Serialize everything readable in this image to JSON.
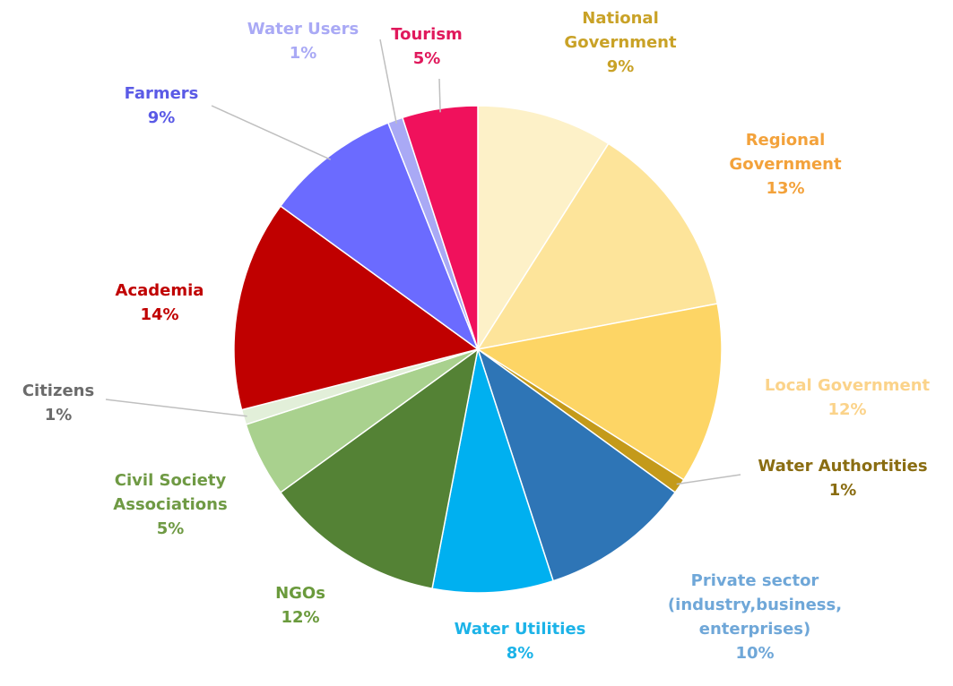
{
  "chart_data": {
    "type": "pie",
    "title": "",
    "start_category": "National Government",
    "direction": "clockwise",
    "slices": [
      {
        "name": "National Government",
        "name_lines": [
          "National",
          "Government"
        ],
        "value": 9,
        "value_label": "9%",
        "color": "#fdf1c8",
        "label_color": "#c9a227"
      },
      {
        "name": "Regional Government",
        "name_lines": [
          "Regional",
          "Government"
        ],
        "value": 13,
        "value_label": "13%",
        "color": "#fde49a",
        "label_color": "#f3a23b"
      },
      {
        "name": "Local Government",
        "name_lines": [
          "Local Government"
        ],
        "value": 12,
        "value_label": "12%",
        "color": "#fdd565",
        "label_color": "#fbd38a"
      },
      {
        "name": "Water Authortities",
        "name_lines": [
          "Water Authortities"
        ],
        "value": 1,
        "value_label": "1%",
        "color": "#c49a1a",
        "label_color": "#8a6d12"
      },
      {
        "name": "Private sector (industry,business, enterprises)",
        "name_lines": [
          "Private sector",
          "(industry,business,",
          "enterprises)"
        ],
        "value": 10,
        "value_label": "10%",
        "color": "#2e75b6",
        "label_color": "#6fa7d8"
      },
      {
        "name": "Water Utilities",
        "name_lines": [
          "Water Utilities"
        ],
        "value": 8,
        "value_label": "8%",
        "color": "#00b0f0",
        "label_color": "#1cb3e8"
      },
      {
        "name": "NGOs",
        "name_lines": [
          "NGOs"
        ],
        "value": 12,
        "value_label": "12%",
        "color": "#548235",
        "label_color": "#6a9a3c"
      },
      {
        "name": "Civil Society Associations",
        "name_lines": [
          "Civil Society",
          "Associations"
        ],
        "value": 5,
        "value_label": "5%",
        "color": "#a9d18e",
        "label_color": "#6f9a44"
      },
      {
        "name": "Citizens",
        "name_lines": [
          "Citizens"
        ],
        "value": 1,
        "value_label": "1%",
        "color": "#e2efd9",
        "label_color": "#6b6b6b"
      },
      {
        "name": "Academia",
        "name_lines": [
          "Academia"
        ],
        "value": 14,
        "value_label": "14%",
        "color": "#c00000",
        "label_color": "#c00000"
      },
      {
        "name": "Farmers",
        "name_lines": [
          "Farmers"
        ],
        "value": 9,
        "value_label": "9%",
        "color": "#6b6bff",
        "label_color": "#5a5ae6"
      },
      {
        "name": "Water Users",
        "name_lines": [
          "Water Users"
        ],
        "value": 1,
        "value_label": "1%",
        "color": "#a9a9f5",
        "label_color": "#a9a9f5"
      },
      {
        "name": "Tourism",
        "name_lines": [
          "Tourism"
        ],
        "value": 5,
        "value_label": "5%",
        "color": "#f0115c",
        "label_color": "#e0195c"
      }
    ],
    "legend": "none"
  }
}
